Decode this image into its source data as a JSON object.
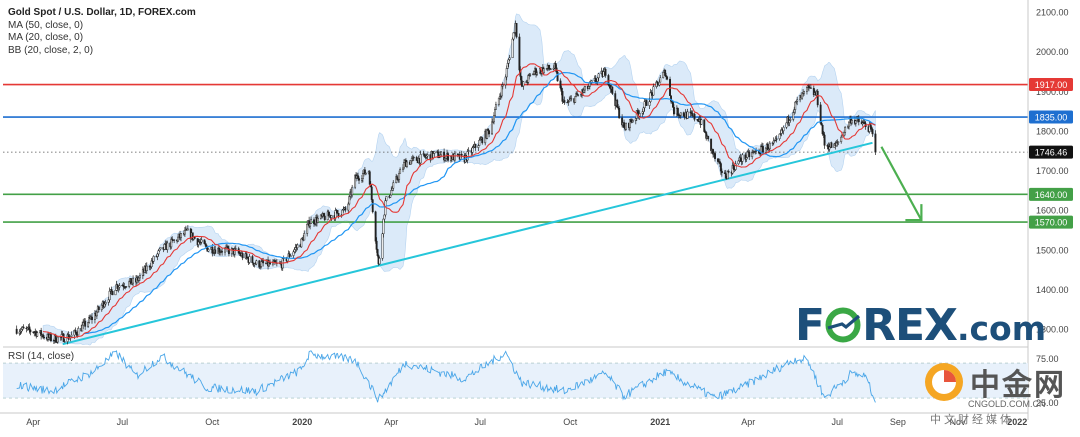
{
  "title": "Gold Spot / U.S. Dollar, 1D, FOREX.com",
  "indicators": [
    "MA (50, close, 0)",
    "MA (20, close, 0)",
    "BB (20, close, 2, 0)"
  ],
  "rsi_label": "RSI (14, close)",
  "watermark": {
    "brand_left": "F",
    "brand_right": "REX",
    "brand_suffix": ".com"
  },
  "cn_logo": {
    "title": "中金网",
    "url": "CNGOLD.COM.CN",
    "subtitle": "中文财经媒体"
  },
  "colors": {
    "resistance_1917": "#e53935",
    "level_1835": "#1e6fd0",
    "support": "#43a047",
    "trendline": "#26c6da",
    "ma20": "#e53935",
    "ma50": "#2196f3",
    "bollinger_fill": "#cfe3f7",
    "candles": "#222222",
    "rsi": "#4aa6e8",
    "arrow": "#4caf50",
    "brand": "#1d4f7a",
    "brand_o": "#3aa845"
  },
  "chart_data": [
    {
      "type": "line",
      "subtype": "candlestick",
      "title": "Gold Spot / U.S. Dollar, 1D, FOREX.com",
      "x_ticks": [
        "Apr",
        "Jul",
        "Oct",
        "2020",
        "Apr",
        "Jul",
        "Oct",
        "2021",
        "Apr",
        "Jul",
        "Sep",
        "Nov",
        "2022"
      ],
      "y_ticks": [
        1300,
        1400,
        1500,
        1600,
        1700,
        1800,
        1900,
        2000,
        2100
      ],
      "y_range": [
        1260,
        2110
      ],
      "x_range": [
        "2019-03",
        "2022-01"
      ],
      "price_path": [
        [
          "2019-03-15",
          1300
        ],
        [
          "2019-04-01",
          1295
        ],
        [
          "2019-04-20",
          1275
        ],
        [
          "2019-05-10",
          1282
        ],
        [
          "2019-06-01",
          1330
        ],
        [
          "2019-06-25",
          1410
        ],
        [
          "2019-07-15",
          1420
        ],
        [
          "2019-08-10",
          1500
        ],
        [
          "2019-09-05",
          1545
        ],
        [
          "2019-09-25",
          1505
        ],
        [
          "2019-10-25",
          1495
        ],
        [
          "2019-11-15",
          1465
        ],
        [
          "2019-12-10",
          1462
        ],
        [
          "2019-12-31",
          1520
        ],
        [
          "2020-01-08",
          1570
        ],
        [
          "2020-02-15",
          1600
        ],
        [
          "2020-02-24",
          1680
        ],
        [
          "2020-03-09",
          1700
        ],
        [
          "2020-03-19",
          1460
        ],
        [
          "2020-03-26",
          1620
        ],
        [
          "2020-04-15",
          1720
        ],
        [
          "2020-05-15",
          1740
        ],
        [
          "2020-06-15",
          1730
        ],
        [
          "2020-07-10",
          1800
        ],
        [
          "2020-07-27",
          1940
        ],
        [
          "2020-08-06",
          2070
        ],
        [
          "2020-08-12",
          1910
        ],
        [
          "2020-08-25",
          1950
        ],
        [
          "2020-09-15",
          1960
        ],
        [
          "2020-09-25",
          1865
        ],
        [
          "2020-10-15",
          1900
        ],
        [
          "2020-11-06",
          1950
        ],
        [
          "2020-11-25",
          1805
        ],
        [
          "2020-12-15",
          1860
        ],
        [
          "2021-01-06",
          1950
        ],
        [
          "2021-01-15",
          1850
        ],
        [
          "2021-02-10",
          1830
        ],
        [
          "2021-02-26",
          1730
        ],
        [
          "2021-03-08",
          1685
        ],
        [
          "2021-03-25",
          1730
        ],
        [
          "2021-04-30",
          1770
        ],
        [
          "2021-05-20",
          1870
        ],
        [
          "2021-06-01",
          1905
        ],
        [
          "2021-06-10",
          1890
        ],
        [
          "2021-06-18",
          1765
        ],
        [
          "2021-06-29",
          1760
        ],
        [
          "2021-07-15",
          1830
        ],
        [
          "2021-07-30",
          1815
        ],
        [
          "2021-08-05",
          1800
        ],
        [
          "2021-08-09",
          1746.46
        ]
      ],
      "series": [
        {
          "name": "MA (20, close, 0)"
        },
        {
          "name": "MA (50, close, 0)"
        },
        {
          "name": "BB (20, close, 2, 0)"
        }
      ],
      "horizontal_levels": [
        {
          "value": 1917.0,
          "label": "1917.00",
          "color": "#e53935"
        },
        {
          "value": 1835.0,
          "label": "1835.00",
          "color": "#1e6fd0"
        },
        {
          "value": 1640.0,
          "label": "1640.00",
          "color": "#43a047"
        },
        {
          "value": 1570.0,
          "label": "1570.00",
          "color": "#43a047"
        }
      ],
      "last_price": {
        "value": 1746.46,
        "label": "1746.46"
      },
      "trendline": {
        "from": [
          "2019-05-01",
          1262
        ],
        "to": [
          "2021-08-06",
          1770
        ]
      },
      "arrow": {
        "from": [
          "2021-08-09",
          1760
        ],
        "to": [
          "2021-09-25",
          1575
        ]
      },
      "grid": false,
      "legend": "top-left"
    },
    {
      "type": "line",
      "title": "RSI (14, close)",
      "y_ticks": [
        25.0,
        75.0
      ],
      "y_tick_labels": [
        "25.00",
        "75.00"
      ],
      "y_range": [
        22,
        85
      ],
      "bands": [
        30,
        70
      ],
      "rsi_path": [
        [
          "2019-03-15",
          45
        ],
        [
          "2019-04-20",
          38
        ],
        [
          "2019-06-01",
          60
        ],
        [
          "2019-06-25",
          82
        ],
        [
          "2019-07-15",
          55
        ],
        [
          "2019-08-10",
          78
        ],
        [
          "2019-09-25",
          42
        ],
        [
          "2019-11-15",
          38
        ],
        [
          "2019-12-31",
          62
        ],
        [
          "2020-01-08",
          80
        ],
        [
          "2020-02-24",
          74
        ],
        [
          "2020-03-19",
          28
        ],
        [
          "2020-04-15",
          70
        ],
        [
          "2020-06-15",
          52
        ],
        [
          "2020-07-27",
          82
        ],
        [
          "2020-08-12",
          48
        ],
        [
          "2020-09-25",
          38
        ],
        [
          "2020-11-06",
          58
        ],
        [
          "2020-11-25",
          32
        ],
        [
          "2021-01-06",
          60
        ],
        [
          "2021-02-26",
          30
        ],
        [
          "2021-03-25",
          42
        ],
        [
          "2021-05-20",
          75
        ],
        [
          "2021-06-01",
          73
        ],
        [
          "2021-06-18",
          30
        ],
        [
          "2021-07-15",
          58
        ],
        [
          "2021-07-30",
          55
        ],
        [
          "2021-08-09",
          25
        ]
      ]
    }
  ]
}
